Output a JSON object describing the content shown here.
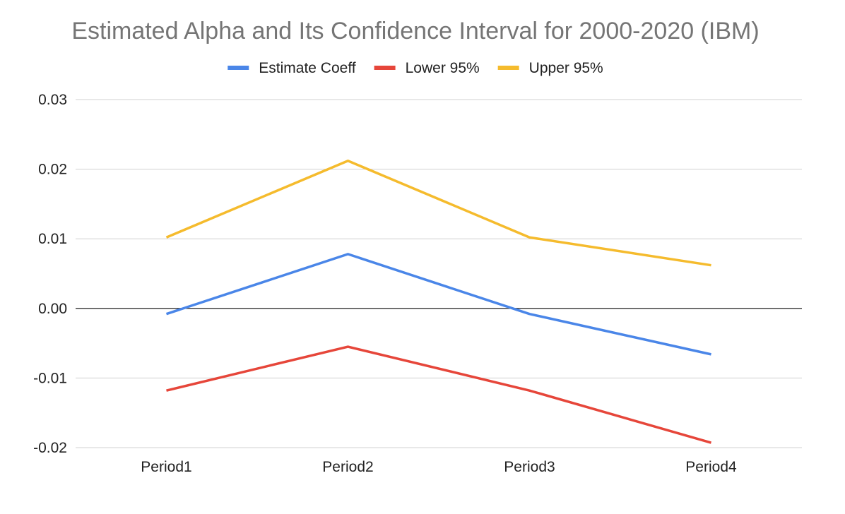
{
  "chart_data": {
    "type": "line",
    "title": "Estimated Alpha and Its Confidence Interval for 2000-2020 (IBM)",
    "xlabel": "",
    "ylabel": "",
    "categories": [
      "Period1",
      "Period2",
      "Period3",
      "Period4"
    ],
    "ylim": [
      -0.02,
      0.03
    ],
    "yticks": [
      "0.03",
      "0.02",
      "0.01",
      "0.00",
      "-0.01",
      "-0.02"
    ],
    "ytick_values": [
      0.03,
      0.02,
      0.01,
      0.0,
      -0.01,
      -0.02
    ],
    "grid": true,
    "legend_position": "top",
    "series": [
      {
        "name": "Estimate Coeff",
        "color": "#4a86e8",
        "values": [
          -0.0008,
          0.0078,
          -0.0008,
          -0.0066
        ]
      },
      {
        "name": "Lower 95%",
        "color": "#e6463a",
        "values": [
          -0.0118,
          -0.0055,
          -0.0118,
          -0.0193
        ]
      },
      {
        "name": "Upper 95%",
        "color": "#f5bb2d",
        "values": [
          0.0102,
          0.0212,
          0.0102,
          0.0062
        ]
      }
    ]
  }
}
